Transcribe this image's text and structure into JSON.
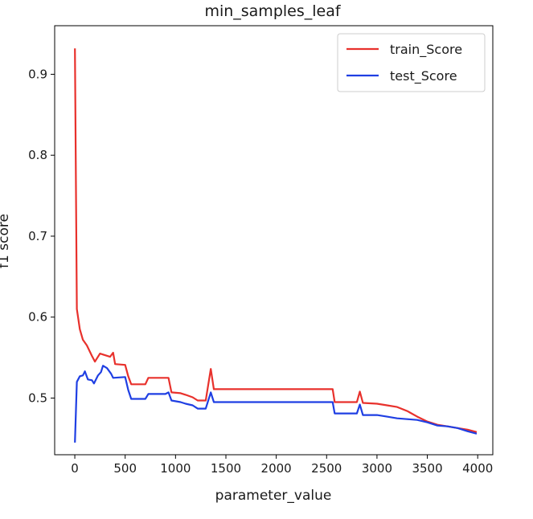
{
  "chart_data": {
    "type": "line",
    "title": "min_samples_leaf",
    "xlabel": "parameter_value",
    "ylabel": "f1 score",
    "xlim": [
      -200,
      4150
    ],
    "ylim": [
      0.43,
      0.96
    ],
    "xticks": [
      0,
      500,
      1000,
      1500,
      2000,
      2500,
      3000,
      3500,
      4000
    ],
    "yticks": [
      0.5,
      0.6,
      0.7,
      0.8,
      0.9
    ],
    "xtick_labels": [
      "0",
      "500",
      "1000",
      "1500",
      "2000",
      "2500",
      "3000",
      "3500",
      "4000"
    ],
    "ytick_labels": [
      "0.5",
      "0.6",
      "0.7",
      "0.8",
      "0.9"
    ],
    "grid": false,
    "legend": "top-right",
    "series": [
      {
        "name": "train_Score",
        "color": "#e8312c",
        "points": [
          [
            1,
            0.932
          ],
          [
            20,
            0.61
          ],
          [
            50,
            0.585
          ],
          [
            80,
            0.572
          ],
          [
            120,
            0.565
          ],
          [
            170,
            0.552
          ],
          [
            200,
            0.545
          ],
          [
            250,
            0.555
          ],
          [
            300,
            0.553
          ],
          [
            350,
            0.551
          ],
          [
            380,
            0.556
          ],
          [
            400,
            0.542
          ],
          [
            500,
            0.541
          ],
          [
            530,
            0.527
          ],
          [
            560,
            0.517
          ],
          [
            700,
            0.517
          ],
          [
            730,
            0.525
          ],
          [
            930,
            0.525
          ],
          [
            960,
            0.507
          ],
          [
            1050,
            0.506
          ],
          [
            1100,
            0.504
          ],
          [
            1170,
            0.501
          ],
          [
            1220,
            0.497
          ],
          [
            1300,
            0.497
          ],
          [
            1350,
            0.536
          ],
          [
            1380,
            0.511
          ],
          [
            1500,
            0.511
          ],
          [
            2000,
            0.511
          ],
          [
            2560,
            0.511
          ],
          [
            2580,
            0.495
          ],
          [
            2800,
            0.495
          ],
          [
            2830,
            0.508
          ],
          [
            2860,
            0.494
          ],
          [
            3000,
            0.493
          ],
          [
            3100,
            0.491
          ],
          [
            3200,
            0.489
          ],
          [
            3300,
            0.484
          ],
          [
            3400,
            0.477
          ],
          [
            3500,
            0.471
          ],
          [
            3600,
            0.467
          ],
          [
            3700,
            0.465
          ],
          [
            3800,
            0.463
          ],
          [
            3900,
            0.461
          ],
          [
            3990,
            0.458
          ]
        ]
      },
      {
        "name": "test_Score",
        "color": "#1f3fe3",
        "points": [
          [
            1,
            0.445
          ],
          [
            20,
            0.52
          ],
          [
            50,
            0.527
          ],
          [
            80,
            0.528
          ],
          [
            100,
            0.533
          ],
          [
            130,
            0.523
          ],
          [
            170,
            0.522
          ],
          [
            190,
            0.518
          ],
          [
            230,
            0.528
          ],
          [
            260,
            0.532
          ],
          [
            280,
            0.54
          ],
          [
            320,
            0.537
          ],
          [
            360,
            0.53
          ],
          [
            380,
            0.525
          ],
          [
            500,
            0.526
          ],
          [
            530,
            0.51
          ],
          [
            560,
            0.499
          ],
          [
            700,
            0.499
          ],
          [
            730,
            0.505
          ],
          [
            900,
            0.505
          ],
          [
            930,
            0.507
          ],
          [
            960,
            0.497
          ],
          [
            1050,
            0.495
          ],
          [
            1100,
            0.493
          ],
          [
            1170,
            0.491
          ],
          [
            1220,
            0.487
          ],
          [
            1300,
            0.487
          ],
          [
            1350,
            0.507
          ],
          [
            1380,
            0.495
          ],
          [
            1500,
            0.495
          ],
          [
            2000,
            0.495
          ],
          [
            2560,
            0.495
          ],
          [
            2580,
            0.481
          ],
          [
            2800,
            0.481
          ],
          [
            2830,
            0.492
          ],
          [
            2860,
            0.479
          ],
          [
            3000,
            0.479
          ],
          [
            3100,
            0.477
          ],
          [
            3200,
            0.475
          ],
          [
            3300,
            0.474
          ],
          [
            3400,
            0.473
          ],
          [
            3500,
            0.47
          ],
          [
            3600,
            0.466
          ],
          [
            3700,
            0.465
          ],
          [
            3800,
            0.463
          ],
          [
            3900,
            0.459
          ],
          [
            3990,
            0.456
          ]
        ]
      }
    ]
  }
}
